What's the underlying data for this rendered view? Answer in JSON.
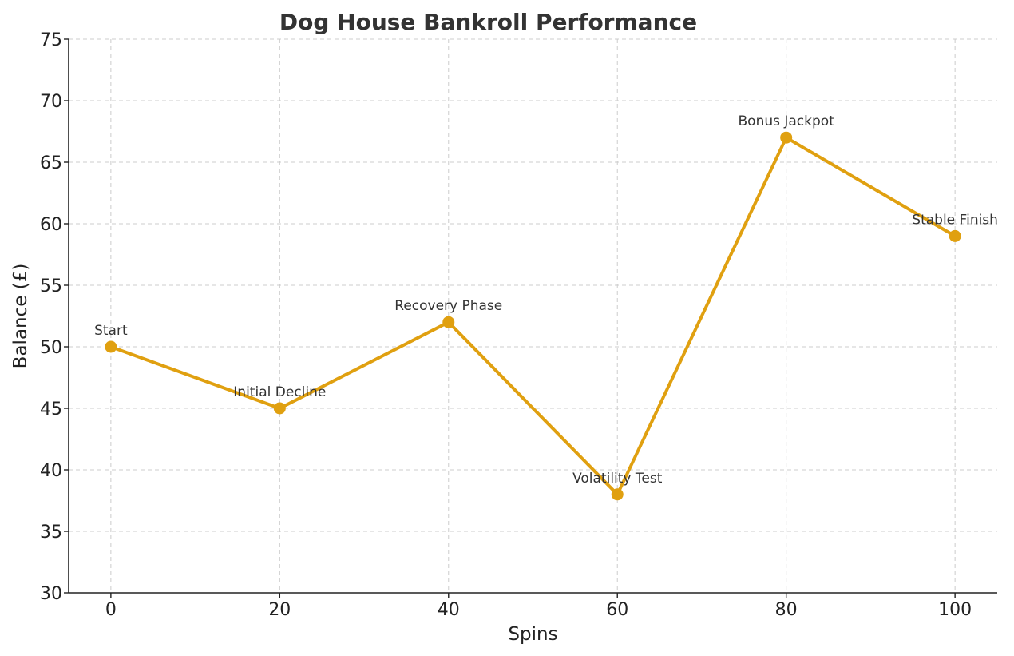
{
  "chart_data": {
    "type": "line",
    "title": "Dog House Bankroll Performance",
    "xlabel": "Spins",
    "ylabel": "Balance (£)",
    "x": [
      0,
      20,
      40,
      60,
      80,
      100
    ],
    "series": [
      {
        "values": [
          50,
          45,
          52,
          38,
          67,
          59
        ],
        "color": "#E0A010",
        "annotations": [
          "Start",
          "Initial Decline",
          "Recovery Phase",
          "Volatility Test",
          "Bonus Jackpot",
          "Stable Finish"
        ]
      }
    ],
    "xlim": [
      -5,
      105
    ],
    "ylim": [
      30,
      75
    ],
    "xticks": [
      0,
      20,
      40,
      60,
      80,
      100
    ],
    "yticks": [
      30,
      35,
      40,
      45,
      50,
      55,
      60,
      65,
      70,
      75
    ],
    "grid": true,
    "grid_color": "#cccccc",
    "grid_style": "dashed"
  }
}
